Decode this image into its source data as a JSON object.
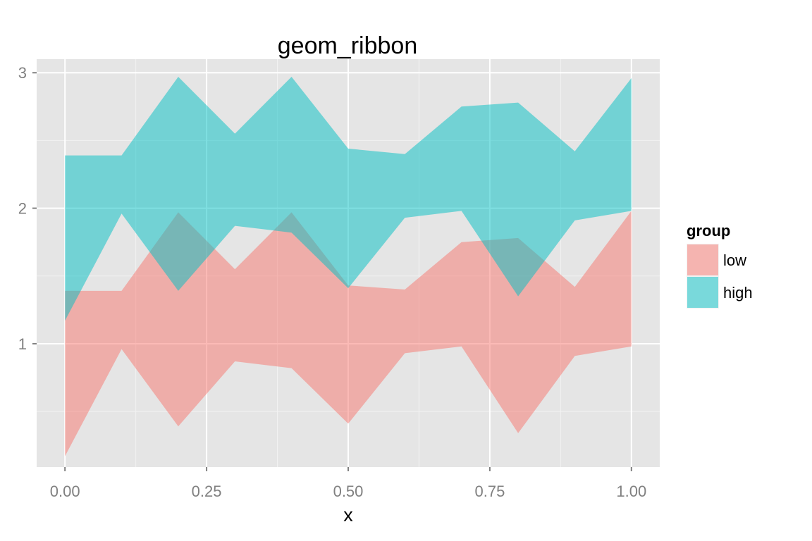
{
  "chart_data": {
    "type": "area",
    "subtype": "ribbon",
    "title": "geom_ribbon",
    "xlabel": "x",
    "ylabel": "",
    "xlim": [
      -0.05,
      1.05
    ],
    "ylim": [
      0.09,
      3.1
    ],
    "x_ticks": [
      0.0,
      0.25,
      0.5,
      0.75,
      1.0
    ],
    "x_tick_labels": [
      "0.00",
      "0.25",
      "0.50",
      "0.75",
      "1.00"
    ],
    "y_ticks": [
      1,
      2,
      3
    ],
    "y_tick_labels": [
      "1",
      "2",
      "3"
    ],
    "grid": true,
    "panel_background": "#E5E5E5",
    "legend": {
      "title": "group",
      "position": "right",
      "entries": [
        "low",
        "high"
      ]
    },
    "x": [
      0.0,
      0.1,
      0.2,
      0.3,
      0.4,
      0.5,
      0.6,
      0.7,
      0.8,
      0.9,
      1.0
    ],
    "series": [
      {
        "name": "low",
        "color": "#F8766D",
        "ymin": [
          0.17,
          0.96,
          0.39,
          0.87,
          0.82,
          0.41,
          0.93,
          0.98,
          0.34,
          0.91,
          0.98
        ],
        "ymax": [
          1.39,
          1.39,
          1.97,
          1.55,
          1.97,
          1.43,
          1.4,
          1.75,
          1.78,
          1.42,
          1.98
        ]
      },
      {
        "name": "high",
        "color": "#00BFC4",
        "ymin": [
          1.17,
          1.96,
          1.39,
          1.87,
          1.82,
          1.41,
          1.93,
          1.98,
          1.35,
          1.91,
          1.98
        ],
        "ymax": [
          2.39,
          2.39,
          2.97,
          2.55,
          2.97,
          2.44,
          2.4,
          2.75,
          2.78,
          2.42,
          2.96
        ]
      }
    ],
    "fill_opacity": 0.5
  }
}
